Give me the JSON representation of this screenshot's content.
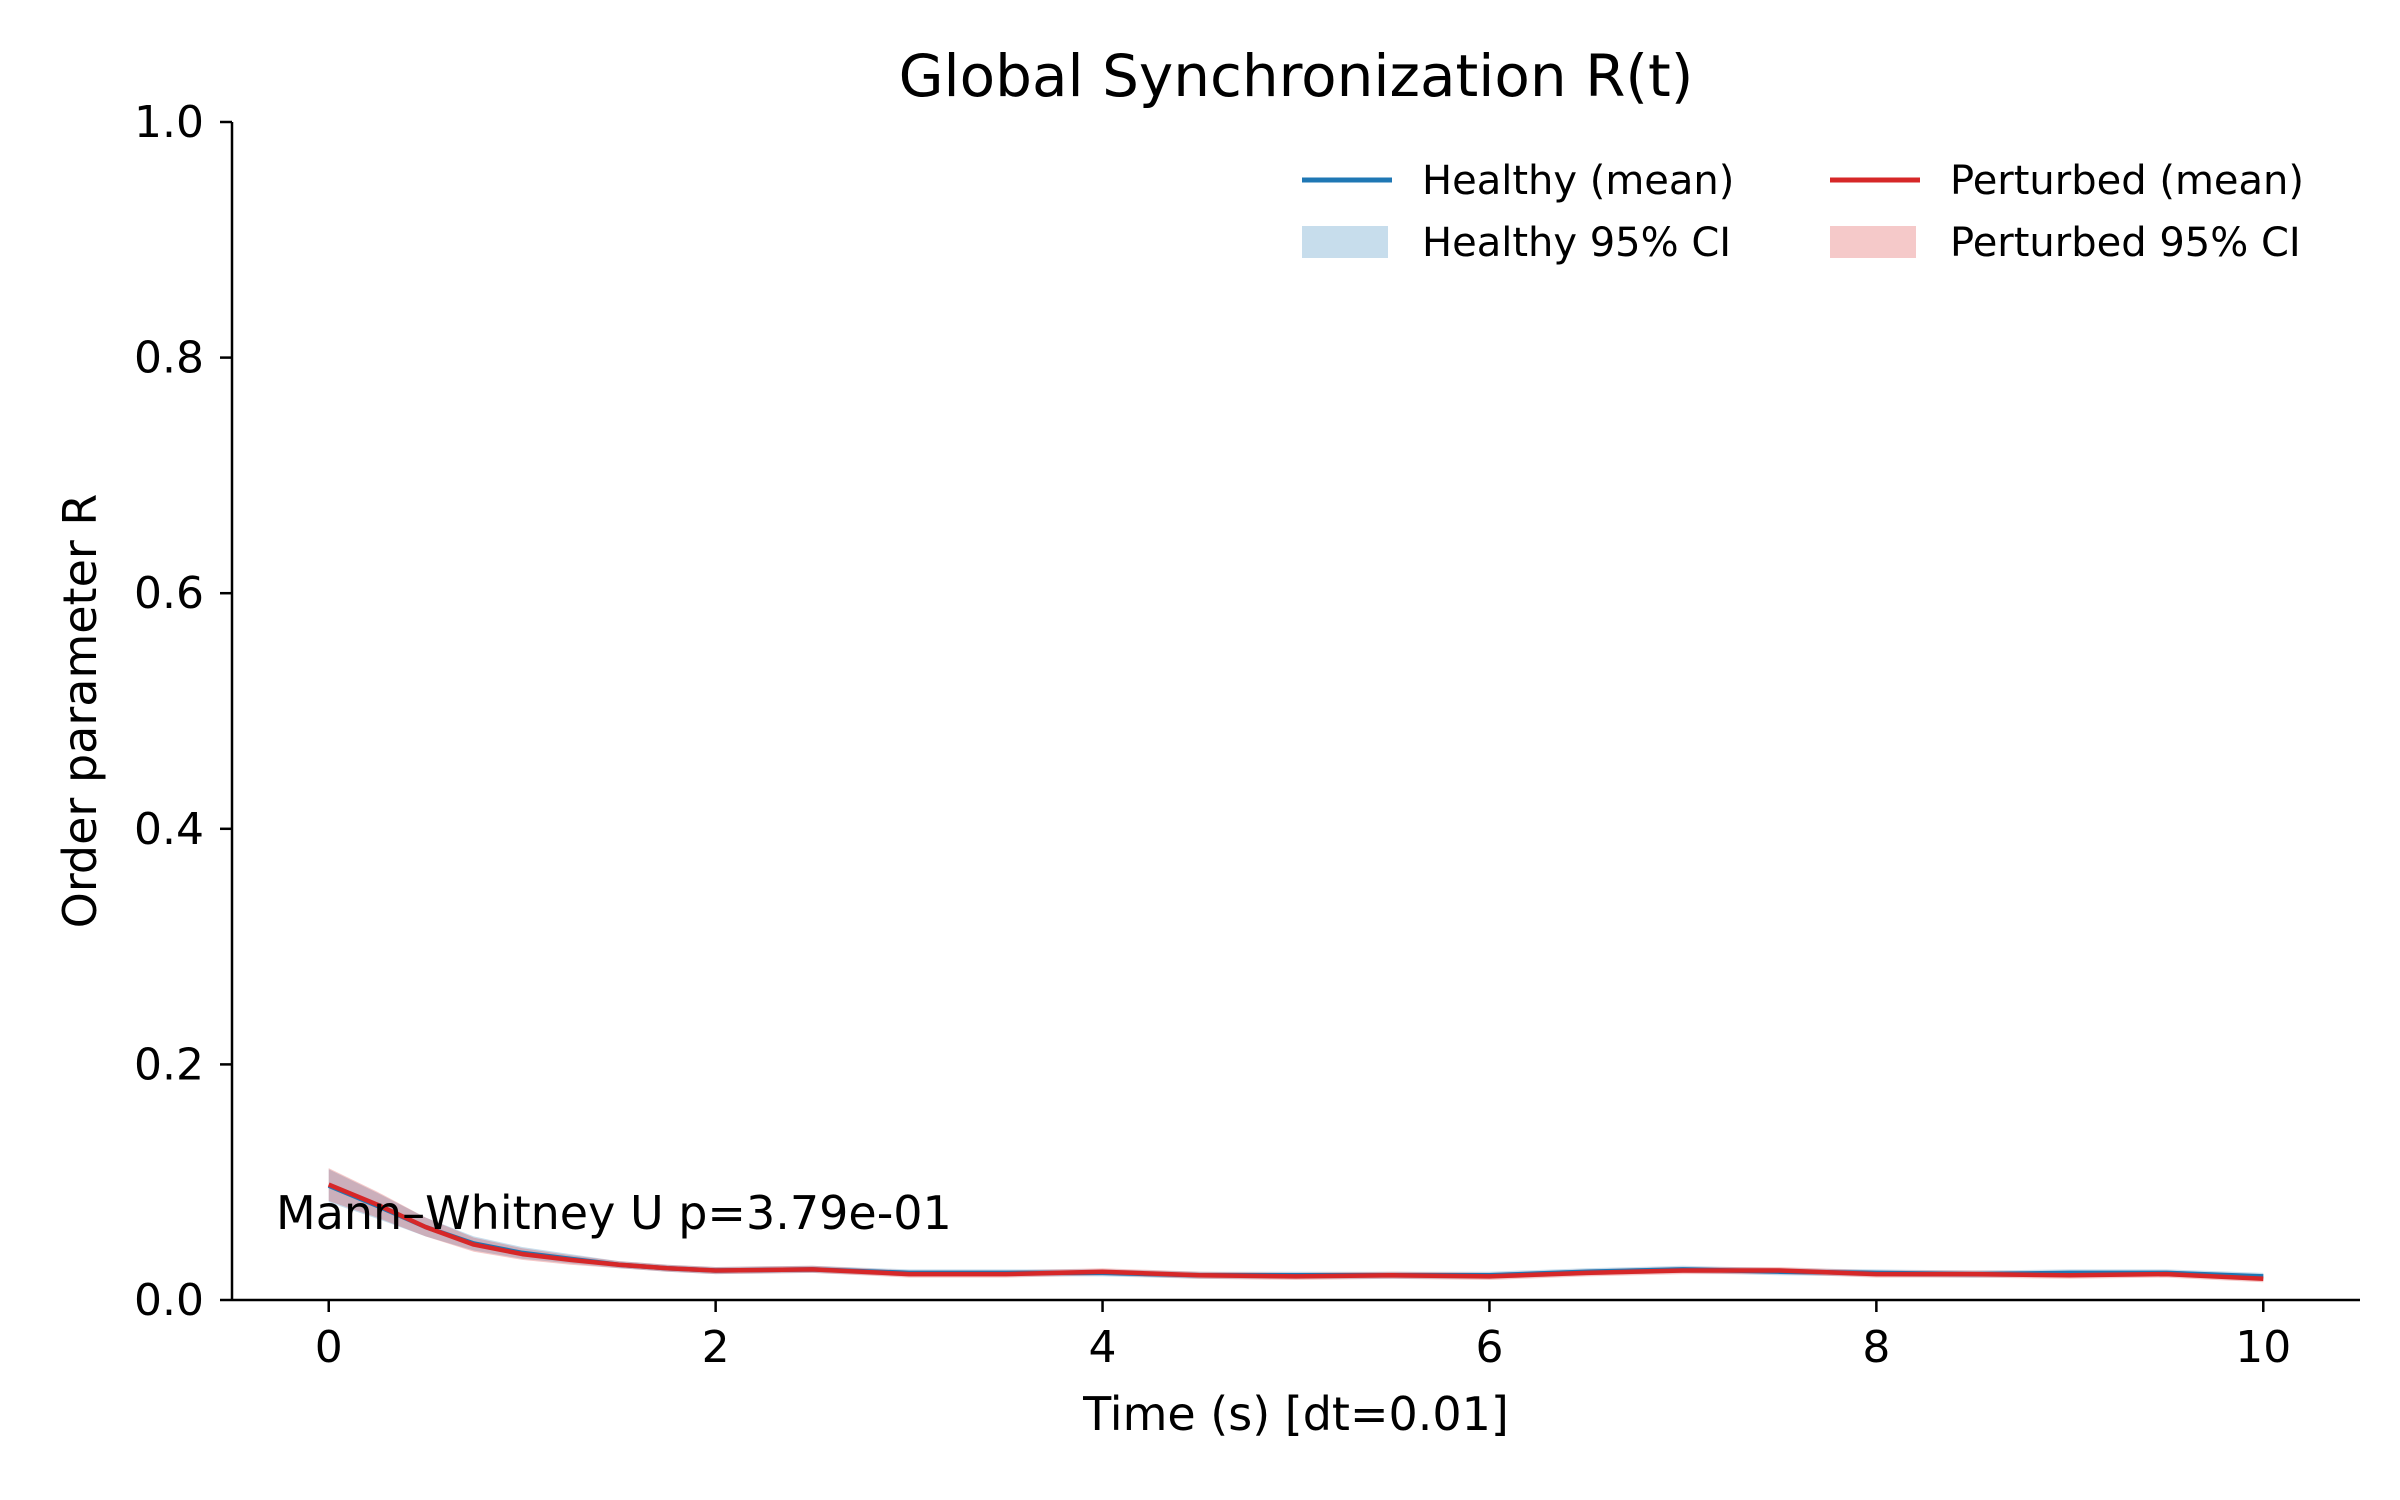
{
  "chart_data": {
    "type": "line",
    "title": "Global Synchronization R(t)",
    "xlabel": "Time (s)  [dt=0.01]",
    "ylabel": "Order parameter R",
    "xlim": [
      -0.5,
      10.5
    ],
    "ylim": [
      0.0,
      1.0
    ],
    "xticks": [
      0,
      2,
      4,
      6,
      8,
      10
    ],
    "xtick_labels": [
      "0",
      "2",
      "4",
      "6",
      "8",
      "10"
    ],
    "yticks": [
      0.0,
      0.2,
      0.4,
      0.6,
      0.8,
      1.0
    ],
    "ytick_labels": [
      "0.0",
      "0.2",
      "0.4",
      "0.6",
      "0.8",
      "1.0"
    ],
    "grid": false,
    "legend": {
      "placement": "top-right",
      "columns": 2,
      "entries": [
        {
          "label": "Healthy (mean)",
          "kind": "line",
          "color": "#1f77b4"
        },
        {
          "label": "Healthy 95% CI",
          "kind": "band",
          "color": "#1f77b4"
        },
        {
          "label": "Perturbed (mean)",
          "kind": "line",
          "color": "#d62728"
        },
        {
          "label": "Perturbed 95% CI",
          "kind": "band",
          "color": "#d62728"
        }
      ]
    },
    "annotation": "Mann–Whitney U p=3.79e-01",
    "x": [
      0,
      0.25,
      0.5,
      0.75,
      1.0,
      1.25,
      1.5,
      1.75,
      2.0,
      2.5,
      3.0,
      3.5,
      4.0,
      4.5,
      5.0,
      5.5,
      6.0,
      6.5,
      7.0,
      7.5,
      8.0,
      8.5,
      9.0,
      9.5,
      10.0
    ],
    "series": [
      {
        "name": "Healthy (mean)",
        "color": "#1f77b4",
        "values": [
          0.097,
          0.08,
          0.062,
          0.048,
          0.04,
          0.035,
          0.03,
          0.027,
          0.025,
          0.026,
          0.023,
          0.023,
          0.023,
          0.021,
          0.021,
          0.021,
          0.021,
          0.024,
          0.026,
          0.024,
          0.023,
          0.022,
          0.023,
          0.023,
          0.02
        ],
        "ci_lower": [
          0.083,
          0.069,
          0.054,
          0.042,
          0.035,
          0.031,
          0.027,
          0.024,
          0.022,
          0.023,
          0.02,
          0.02,
          0.02,
          0.018,
          0.018,
          0.018,
          0.018,
          0.021,
          0.023,
          0.021,
          0.02,
          0.019,
          0.02,
          0.02,
          0.017
        ],
        "ci_upper": [
          0.111,
          0.091,
          0.07,
          0.054,
          0.045,
          0.039,
          0.033,
          0.03,
          0.028,
          0.029,
          0.026,
          0.026,
          0.026,
          0.024,
          0.024,
          0.024,
          0.024,
          0.027,
          0.029,
          0.027,
          0.026,
          0.025,
          0.026,
          0.026,
          0.023
        ]
      },
      {
        "name": "Perturbed (mean)",
        "color": "#d62728",
        "values": [
          0.098,
          0.081,
          0.062,
          0.047,
          0.039,
          0.034,
          0.03,
          0.027,
          0.025,
          0.026,
          0.022,
          0.022,
          0.024,
          0.021,
          0.02,
          0.021,
          0.02,
          0.023,
          0.025,
          0.025,
          0.022,
          0.022,
          0.021,
          0.022,
          0.018
        ],
        "ci_lower": [
          0.084,
          0.07,
          0.054,
          0.041,
          0.034,
          0.03,
          0.027,
          0.024,
          0.022,
          0.023,
          0.019,
          0.019,
          0.021,
          0.018,
          0.017,
          0.018,
          0.017,
          0.02,
          0.022,
          0.022,
          0.019,
          0.019,
          0.018,
          0.019,
          0.015
        ],
        "ci_upper": [
          0.112,
          0.092,
          0.07,
          0.053,
          0.044,
          0.038,
          0.033,
          0.03,
          0.028,
          0.029,
          0.025,
          0.025,
          0.027,
          0.024,
          0.023,
          0.024,
          0.023,
          0.026,
          0.028,
          0.028,
          0.025,
          0.025,
          0.024,
          0.025,
          0.021
        ]
      }
    ]
  }
}
